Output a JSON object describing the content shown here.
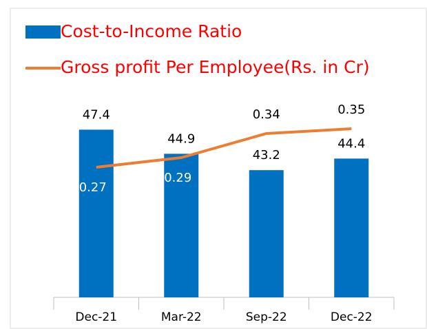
{
  "chart_data": {
    "type": "bar-line",
    "categories": [
      "Dec-21",
      "Mar-22",
      "Sep-22",
      "Dec-22"
    ],
    "series": [
      {
        "name": "Cost-to-Income Ratio",
        "type": "bar",
        "color": "#0070c0",
        "values": [
          47.4,
          44.9,
          43.2,
          44.4
        ]
      },
      {
        "name": "Gross profit Per Employee(Rs. in Cr)",
        "type": "line",
        "axis": "y2",
        "color": "#ed7d31",
        "values": [
          0.27,
          0.29,
          0.34,
          0.35
        ]
      }
    ],
    "ylim": [
      30,
      55
    ],
    "y2lim": [
      0,
      0.5
    ],
    "legend": "top-left",
    "legend_color": "#ff0000"
  }
}
